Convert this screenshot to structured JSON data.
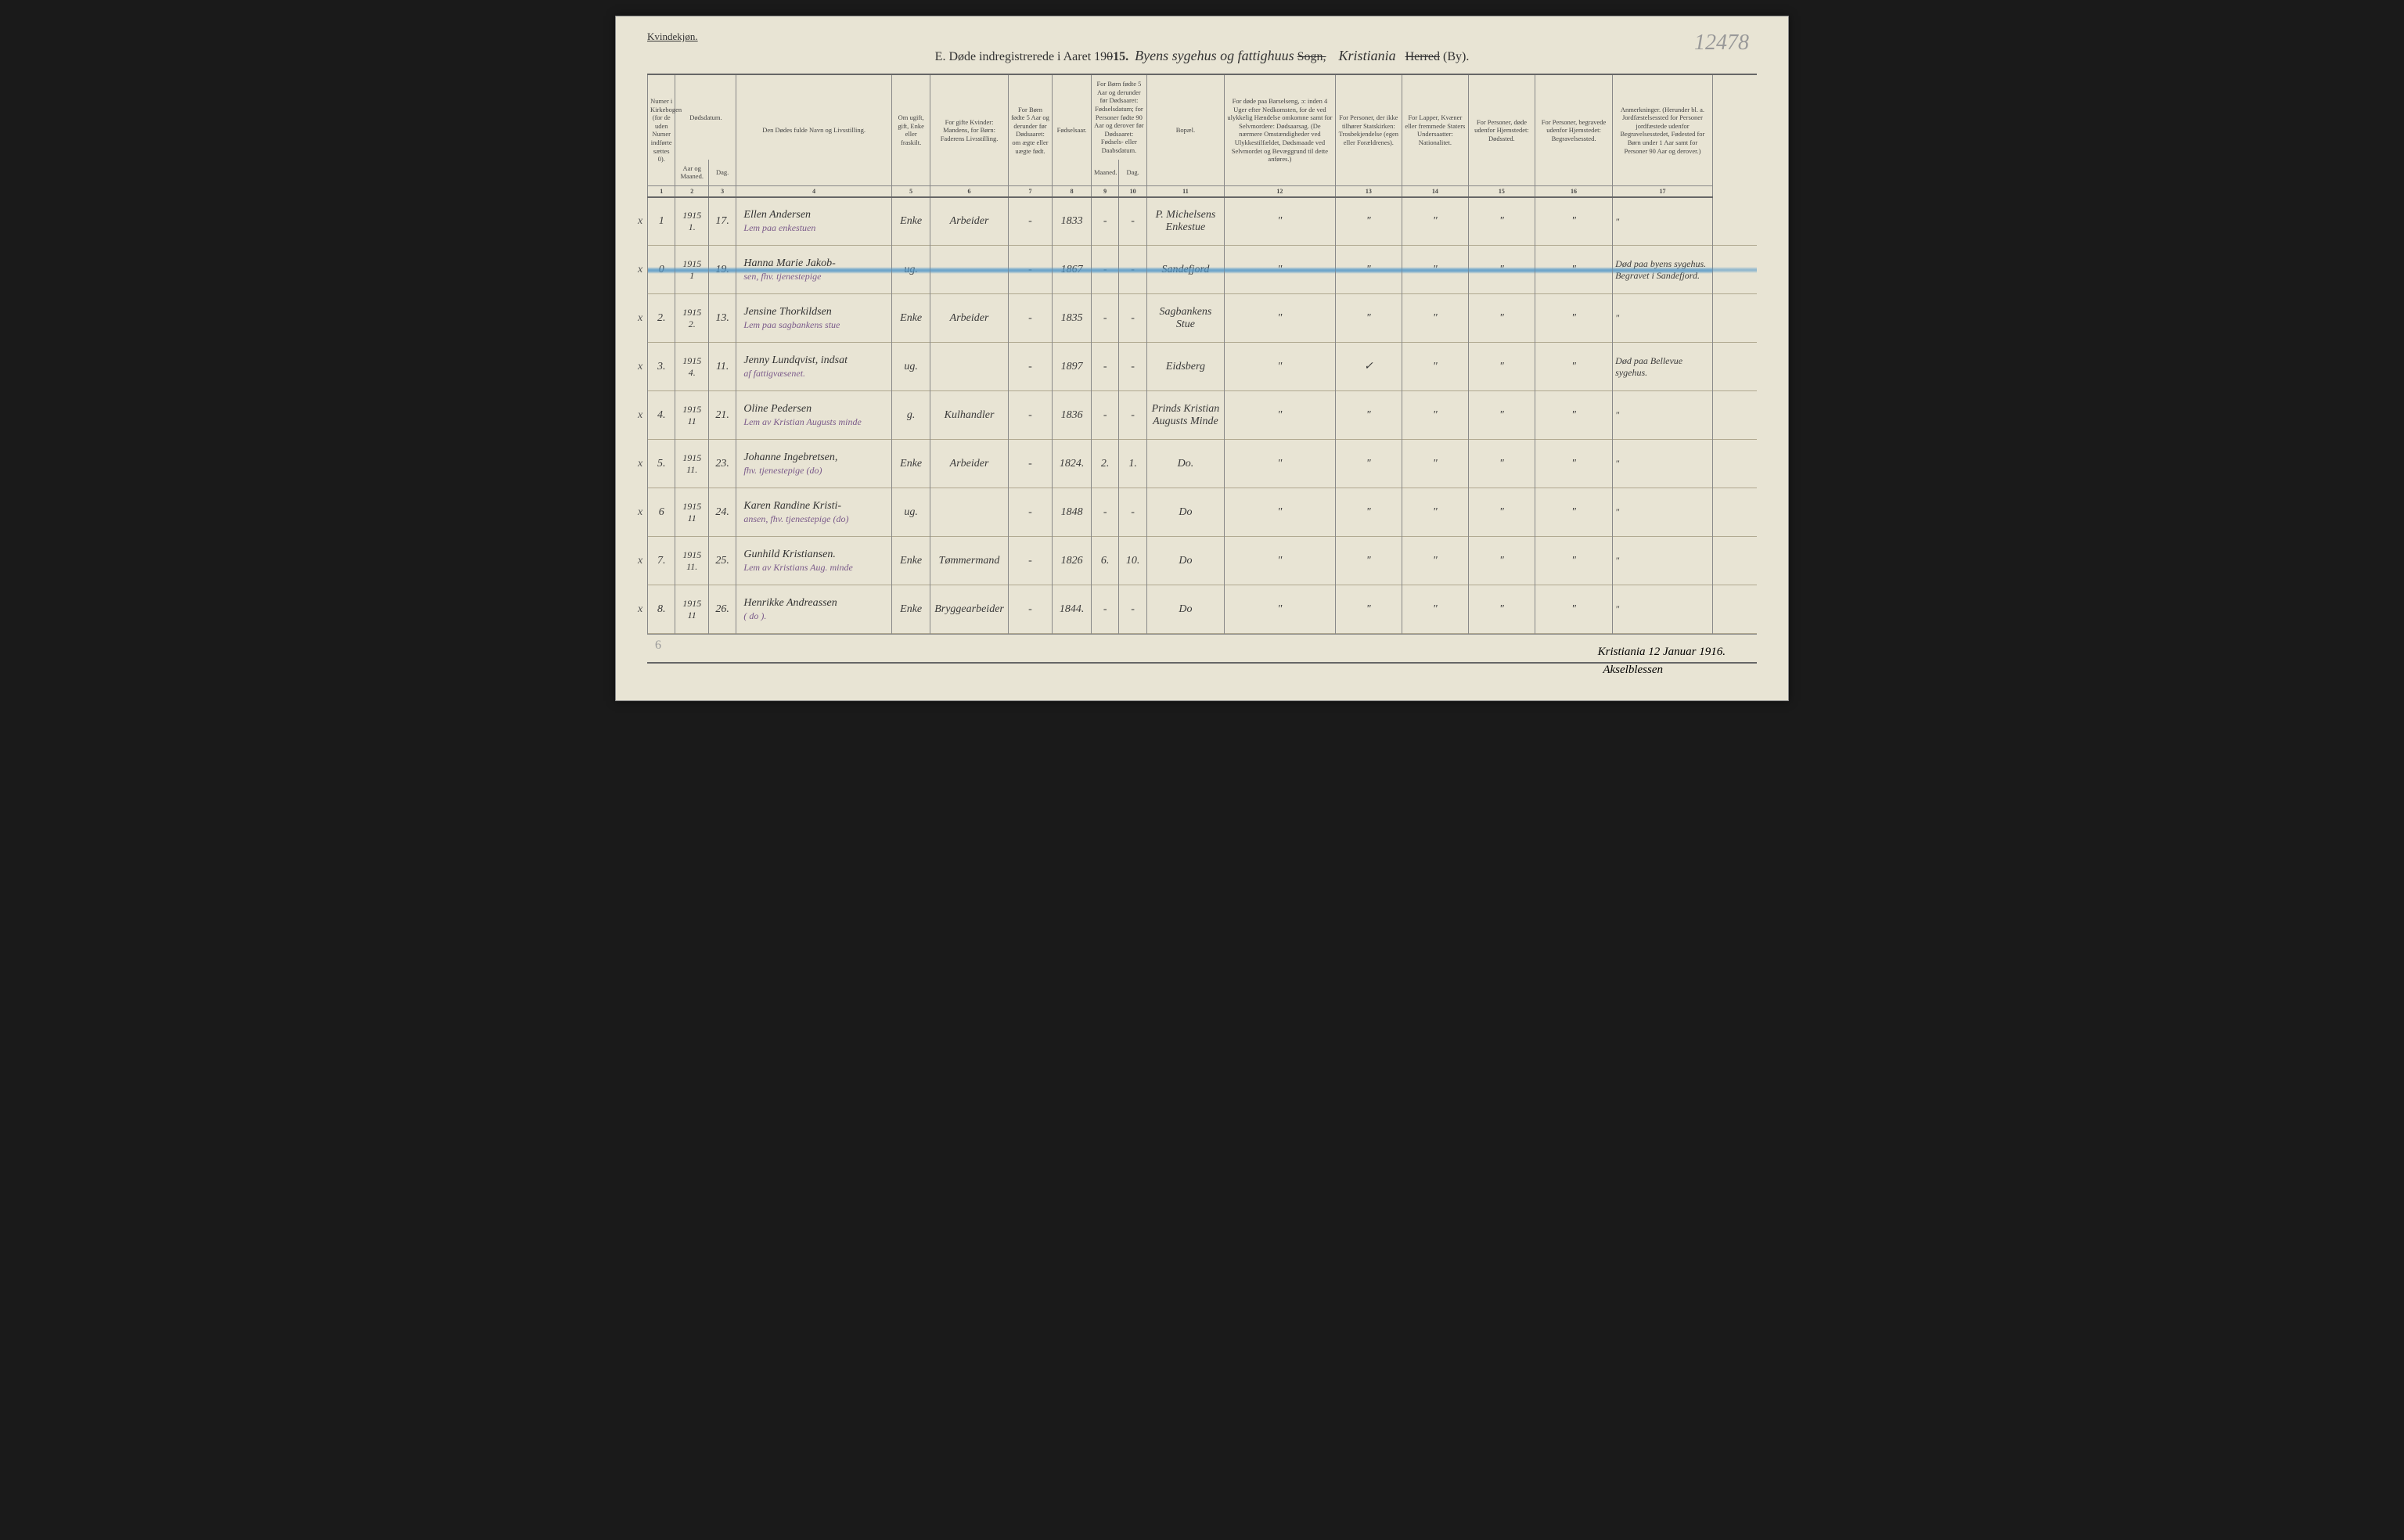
{
  "header": {
    "gender_label": "Kvindekjøn.",
    "top_pencil": "12478",
    "title_prefix": "E.   Døde indregistrerede i Aaret 19",
    "title_year_overwrite": "15.",
    "title_year_struck": "0",
    "title_script_1": "Byens sygehus og fattighuus",
    "title_sogn": "Sogn,",
    "title_script_2": "Kristiania",
    "title_herred": "Herred",
    "title_by": "(By)."
  },
  "columns": {
    "c1": "Numer i Kirkebogen (for de uden Numer indførte sættes 0).",
    "c2_top": "Dødsdatum.",
    "c2": "Aar og Maaned.",
    "c3": "Dag.",
    "c4": "Den Dødes fulde Navn og Livsstilling.",
    "c5": "Om ugift, gift, Enke eller fraskilt.",
    "c6": "For gifte Kvinder: Mandens, for Børn: Faderens Livsstilling.",
    "c7": "For Børn fødte 5 Aar og derunder før Dødsaaret: om ægte eller uægte født.",
    "c8": "Fødselsaar.",
    "c9_10_top": "For Børn fødte 5 Aar og derunder før Dødsaaret: Fødselsdatum; for Personer fødte 90 Aar og derover før Dødsaaret: Fødsels- eller Daabsdatum.",
    "c9": "Maaned.",
    "c10": "Dag.",
    "c11": "Bopæl.",
    "c12": "For døde paa Barselseng, ɔ: inden 4 Uger efter Nedkomsten, for de ved ulykkelig Hændelse omkomne samt for Selvmordere: Dødsaarsag. (De nærmere Omstændigheder ved Ulykkestilfældet, Dødsmaade ved Selvmordet og Bevæggrund til dette anføres.)",
    "c13": "For Personer, der ikke tilhører Statskirken: Trosbekjendelse (egen eller Forældrenes).",
    "c14": "For Lapper, Kvæner eller fremmede Staters Undersaatter: Nationalitet.",
    "c15": "For Personer, døde udenfor Hjemstedet: Dødssted.",
    "c16": "For Personer, begravede udenfor Hjemstedet: Begravelsessted.",
    "c17": "Anmerkninger. (Herunder bl. a. Jordfæstelsessted for Personer jordfæstede udenfor Begravelsesstedet, Fødested for Børn under 1 Aar samt for Personer 90 Aar og derover.)",
    "nums": [
      "1",
      "2",
      "3",
      "4",
      "5",
      "6",
      "7",
      "8",
      "9",
      "10",
      "11",
      "12",
      "13",
      "14",
      "15",
      "16",
      "17"
    ]
  },
  "rows": [
    {
      "x": "x",
      "num": "1",
      "ym": "1915\n1.",
      "day": "17.",
      "name": "Ellen Andersen",
      "sub": "Lem paa enkestuen",
      "status": "Enke",
      "occ": "Arbeider",
      "c7": "-",
      "year": "1833",
      "m": "-",
      "d": "-",
      "bopael": "P. Michelsens Enkestue",
      "c12": "\"",
      "c13": "\"",
      "c14": "\"",
      "c15": "\"",
      "c16": "\"",
      "c17": "\""
    },
    {
      "x": "x",
      "num": "0",
      "ym": "1915\n1",
      "day": "19.",
      "name": "Hanna Marie Jakob-",
      "sub": "sen, fhv. tjenestepige",
      "status": "ug.",
      "occ": "",
      "c7": "-",
      "year": "1867",
      "m": "-",
      "d": "-",
      "bopael": "Sandefjord",
      "c12": "\"",
      "c13": "\"",
      "c14": "\"",
      "c15": "\"",
      "c16": "\"",
      "c17": "Død paa byens sygehus. Begravet i Sandefjord.",
      "blue": true
    },
    {
      "x": "x",
      "num": "2.",
      "ym": "1915\n2.",
      "day": "13.",
      "name": "Jensine Thorkildsen",
      "sub": "Lem paa sagbankens stue",
      "status": "Enke",
      "occ": "Arbeider",
      "c7": "-",
      "year": "1835",
      "m": "-",
      "d": "-",
      "bopael": "Sagbankens Stue",
      "c12": "\"",
      "c13": "\"",
      "c14": "\"",
      "c15": "\"",
      "c16": "\"",
      "c17": "\""
    },
    {
      "x": "x",
      "num": "3.",
      "ym": "1915\n4.",
      "day": "11.",
      "name": "Jenny Lundqvist, indsat",
      "sub": "af fattigvæsenet.",
      "status": "ug.",
      "occ": "",
      "c7": "-",
      "year": "1897",
      "m": "-",
      "d": "-",
      "bopael": "Eidsberg",
      "c12": "\"",
      "c13": "✓",
      "c14": "\"",
      "c15": "\"",
      "c16": "\"",
      "c17": "Død paa Bellevue sygehus."
    },
    {
      "x": "x",
      "num": "4.",
      "ym": "1915\n11",
      "day": "21.",
      "name": "Oline Pedersen",
      "sub": "Lem av Kristian Augusts minde",
      "status": "g.",
      "occ": "Kulhandler",
      "c7": "-",
      "year": "1836",
      "m": "-",
      "d": "-",
      "bopael": "Prinds Kristian Augusts Minde",
      "c12": "\"",
      "c13": "\"",
      "c14": "\"",
      "c15": "\"",
      "c16": "\"",
      "c17": "\""
    },
    {
      "x": "x",
      "num": "5.",
      "ym": "1915\n11.",
      "day": "23.",
      "name": "Johanne Ingebretsen,",
      "sub": "fhv. tjenestepige  (do)",
      "status": "Enke",
      "occ": "Arbeider",
      "c7": "-",
      "year": "1824.",
      "m": "2.",
      "d": "1.",
      "bopael": "Do.",
      "c12": "\"",
      "c13": "\"",
      "c14": "\"",
      "c15": "\"",
      "c16": "\"",
      "c17": "\""
    },
    {
      "x": "x",
      "num": "6",
      "ym": "1915\n11",
      "day": "24.",
      "name": "Karen Randine Kristi-",
      "sub": "ansen, fhv. tjenestepige (do)",
      "status": "ug.",
      "occ": "",
      "c7": "-",
      "year": "1848",
      "m": "-",
      "d": "-",
      "bopael": "Do",
      "c12": "\"",
      "c13": "\"",
      "c14": "\"",
      "c15": "\"",
      "c16": "\"",
      "c17": "\""
    },
    {
      "x": "x",
      "num": "7.",
      "ym": "1915\n11.",
      "day": "25.",
      "name": "Gunhild Kristiansen.",
      "sub": "Lem av Kristians Aug. minde",
      "status": "Enke",
      "occ": "Tømmermand",
      "c7": "-",
      "year": "1826",
      "m": "6.",
      "d": "10.",
      "bopael": "Do",
      "c12": "\"",
      "c13": "\"",
      "c14": "\"",
      "c15": "\"",
      "c16": "\"",
      "c17": "\""
    },
    {
      "x": "x",
      "num": "8.",
      "ym": "1915\n11",
      "day": "26.",
      "name": "Henrikke Andreassen",
      "sub": "( do ).",
      "status": "Enke",
      "occ": "Bryggearbeider",
      "c7": "-",
      "year": "1844.",
      "m": "-",
      "d": "-",
      "bopael": "Do",
      "c12": "\"",
      "c13": "\"",
      "c14": "\"",
      "c15": "\"",
      "c16": "\"",
      "c17": "\""
    }
  ],
  "footer": {
    "place_date": "Kristiania 12 Januar 1916.",
    "signature": "Akselblessen",
    "bottom_left_pencil": "6"
  },
  "style": {
    "page_bg": "#e8e4d4",
    "border": "#888",
    "ink": "#3a3a3a",
    "purple_ink": "#7a5a8a",
    "blue_crayon": "rgba(80,150,200,0.55)"
  }
}
